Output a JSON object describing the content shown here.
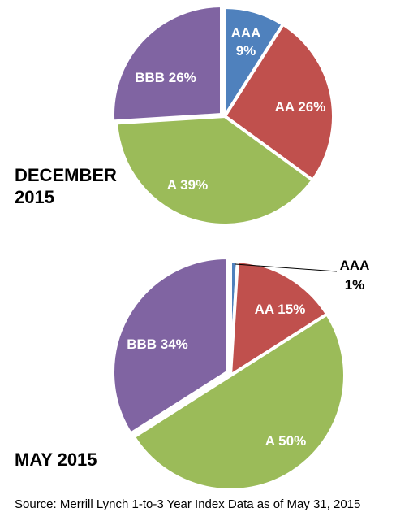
{
  "colors": {
    "AAA": "#4f81bd",
    "AA": "#c0504d",
    "A": "#9bbb59",
    "BBB": "#8064a2"
  },
  "chart_data": [
    {
      "type": "pie",
      "title": "DECEMBER 2015",
      "slices": [
        {
          "label": "AAA",
          "value": 9,
          "text": "9%"
        },
        {
          "label": "AA",
          "value": 26,
          "text": "26%"
        },
        {
          "label": "A",
          "value": 39,
          "text": "39%"
        },
        {
          "label": "BBB",
          "value": 26,
          "text": "26%"
        }
      ]
    },
    {
      "type": "pie",
      "title": "MAY 2015",
      "slices": [
        {
          "label": "AAA",
          "value": 1,
          "text": "1%"
        },
        {
          "label": "AA",
          "value": 15,
          "text": "15%"
        },
        {
          "label": "A",
          "value": 50,
          "text": "50%"
        },
        {
          "label": "BBB",
          "value": 34,
          "text": "34%"
        }
      ]
    }
  ],
  "captions": {
    "chart1_line1": "DECEMBER",
    "chart1_line2": "2015",
    "chart2": "MAY 2015"
  },
  "source": "Source: Merrill Lynch 1-to-3 Year Index Data as of May 31, 2015"
}
